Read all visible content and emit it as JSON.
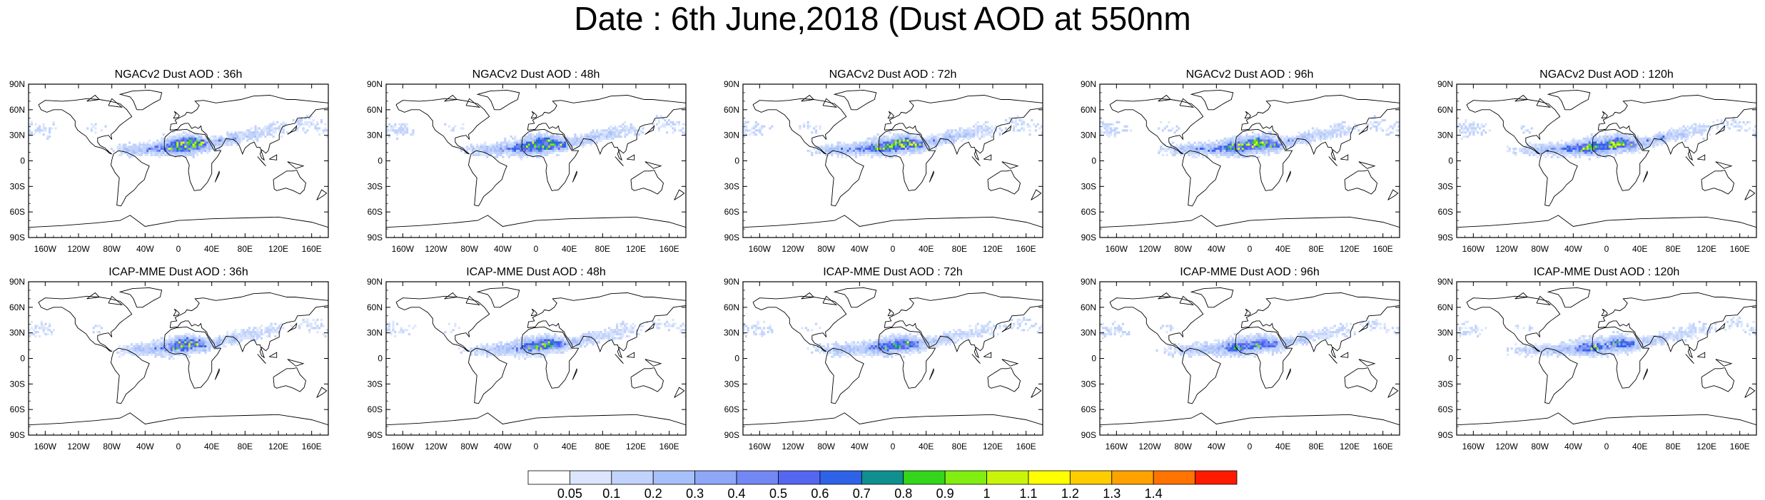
{
  "title": "Date : 6th June,2018 (Dust AOD at 550nm",
  "panels": [
    {
      "title": "NGACv2 Dust AOD : 36h"
    },
    {
      "title": "NGACv2 Dust AOD : 48h"
    },
    {
      "title": "NGACv2 Dust AOD : 72h"
    },
    {
      "title": "NGACv2 Dust AOD : 96h"
    },
    {
      "title": "NGACv2 Dust AOD : 120h"
    },
    {
      "title": "ICAP-MME Dust AOD : 36h"
    },
    {
      "title": "ICAP-MME Dust AOD : 48h"
    },
    {
      "title": "ICAP-MME Dust AOD : 72h"
    },
    {
      "title": "ICAP-MME Dust AOD : 96h"
    },
    {
      "title": "ICAP-MME Dust AOD : 120h"
    }
  ],
  "lat_ticks": [
    "90N",
    "60N",
    "30N",
    "0",
    "30S",
    "60S",
    "90S"
  ],
  "lon_ticks": [
    "160W",
    "120W",
    "80W",
    "40W",
    "0",
    "40E",
    "80E",
    "120E",
    "160E"
  ],
  "colorbar": {
    "labels": [
      "0.05",
      "0.1",
      "0.2",
      "0.3",
      "0.4",
      "0.5",
      "0.6",
      "0.7",
      "0.8",
      "0.9",
      "1",
      "1.1",
      "1.2",
      "1.3",
      "1.4"
    ],
    "colors": [
      "#ffffff",
      "#dbe6fd",
      "#c2d3fb",
      "#a8c0fa",
      "#8ea7f7",
      "#7388f4",
      "#5566f0",
      "#2e63e8",
      "#0f8f8f",
      "#33d61a",
      "#7fee10",
      "#c8f50a",
      "#ffff00",
      "#ffcc00",
      "#ffa200",
      "#ff7300",
      "#ff1a00"
    ]
  },
  "colors": {
    "land_outline": "#000000",
    "background": "#ffffff"
  }
}
